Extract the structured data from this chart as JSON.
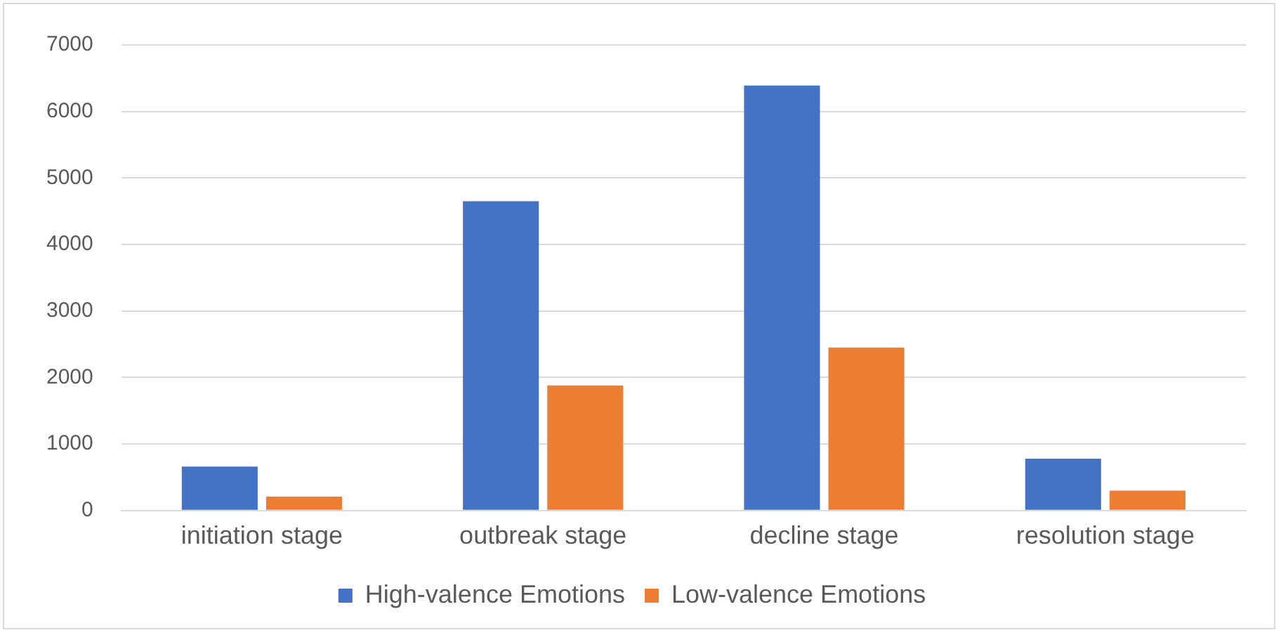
{
  "chart_data": {
    "type": "bar",
    "categories": [
      "initiation stage",
      "outbreak stage",
      "decline stage",
      "resolution stage"
    ],
    "series": [
      {
        "name": "High-valence Emotions",
        "color": "#4472c4",
        "values": [
          660,
          4650,
          6390,
          780
        ]
      },
      {
        "name": "Low-valence Emotions",
        "color": "#ed7d31",
        "values": [
          210,
          1880,
          2450,
          300
        ]
      }
    ],
    "ylim": [
      0,
      7000
    ],
    "yticks": [
      0,
      1000,
      2000,
      3000,
      4000,
      5000,
      6000,
      7000
    ],
    "grid": "y",
    "legend": "bottom"
  }
}
